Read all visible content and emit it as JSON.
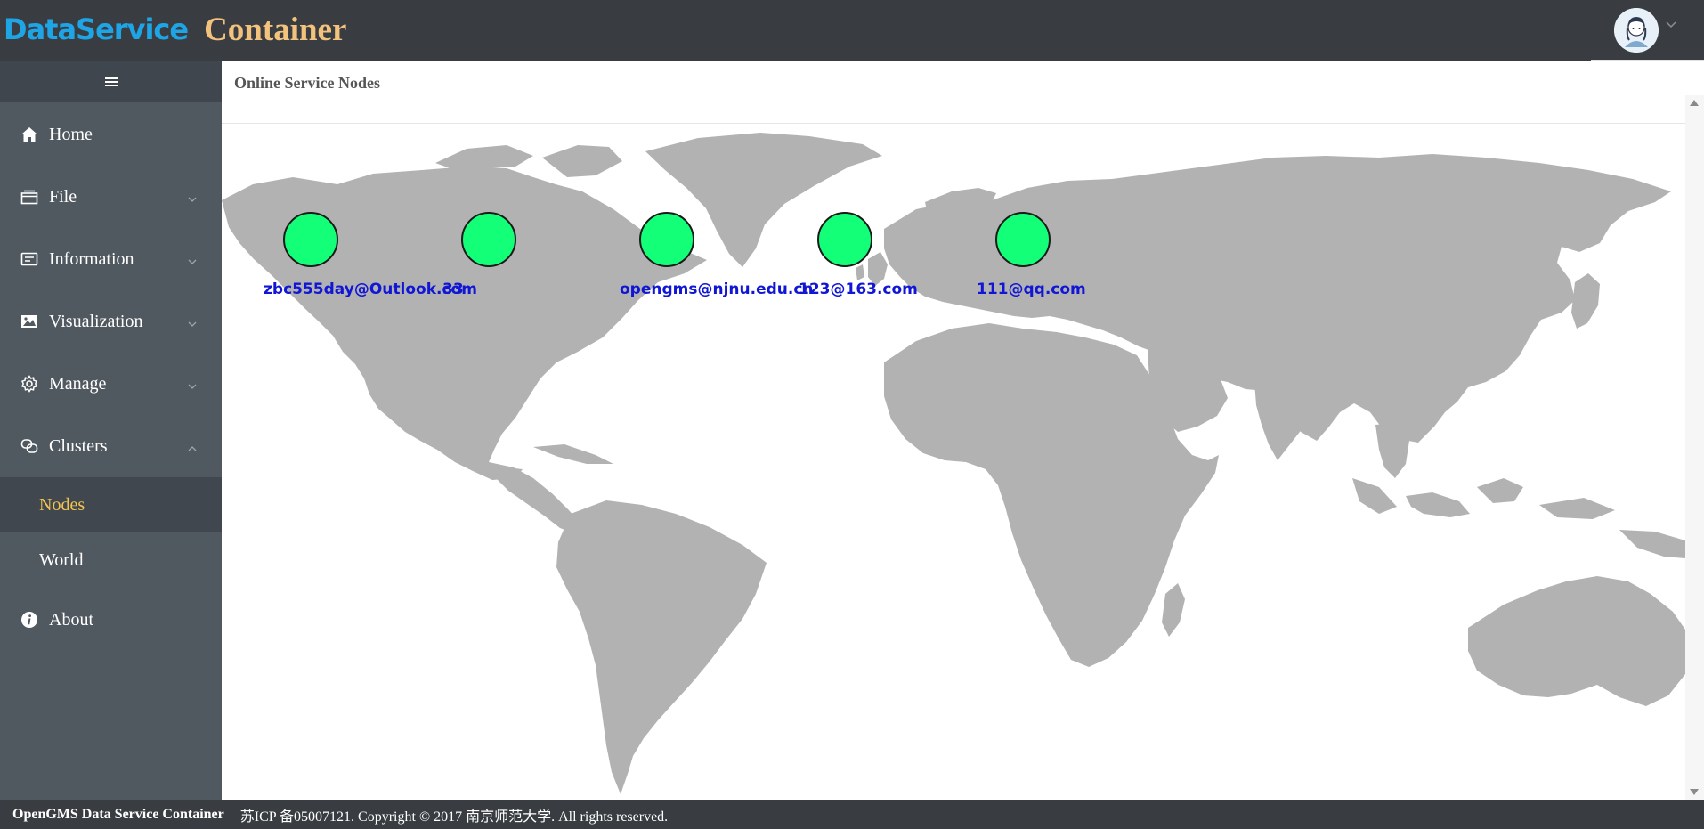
{
  "header": {
    "brand_part1": "Data",
    "brand_part2": "Service",
    "brand_part3": "Container",
    "avatar_icon": "user-avatar-icon",
    "colors": {
      "background": "#393d42",
      "brand_blue": "#1ea5e6",
      "brand_gold": "#f3c27c"
    }
  },
  "sidebar": {
    "toggle_icon": "hamburger-menu-icon",
    "items": [
      {
        "label": "Home",
        "icon": "home-icon"
      },
      {
        "label": "File",
        "icon": "file-icon"
      },
      {
        "label": "Information",
        "icon": "info-card-icon"
      },
      {
        "label": "Visualization",
        "icon": "image-icon"
      },
      {
        "label": "Manage",
        "icon": "gear-icon"
      },
      {
        "label": "Clusters",
        "icon": "clusters-icon",
        "expanded": true
      },
      {
        "label": "About",
        "icon": "about-info-icon"
      }
    ],
    "clusters_submenu": [
      {
        "label": "Nodes",
        "active": true
      },
      {
        "label": "World",
        "active": false
      }
    ],
    "colors": {
      "background": "#505860",
      "active_text": "#f5c451"
    }
  },
  "main": {
    "title": "Online Service Nodes",
    "nodes": [
      {
        "label": "zbc555day@Outlook.com"
      },
      {
        "label": "33"
      },
      {
        "label": "opengms@njnu.edu.cn"
      },
      {
        "label": "123@163.com"
      },
      {
        "label": "111@qq.com"
      }
    ],
    "colors": {
      "node_fill": "#13ff77",
      "node_label": "#1016d4",
      "land": "#b2b2b2"
    }
  },
  "footer": {
    "brand": "OpenGMS Data Service Container",
    "copyright": "苏ICP 备05007121. Copyright © 2017 南京师范大学. All rights reserved."
  }
}
